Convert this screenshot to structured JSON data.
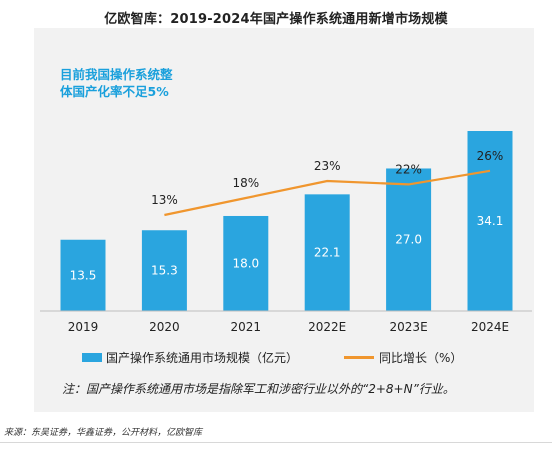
{
  "header": {
    "title": "亿欧智库：2019-2024年国产操作系统通用新增市场规模"
  },
  "callout": {
    "line1": "目前我国操作系统整",
    "line2": "体国产化率不足5%"
  },
  "note": "注：国产操作系统通用市场是指除军工和涉密行业以外的“2+8+N”行业。",
  "source": "来源：东吴证券，华鑫证券，公开材料，亿欧智库",
  "colors": {
    "bar": "#2aa5df",
    "line": "#f0962e",
    "panel": "#f2f2f2",
    "callout": "#1aa0dc"
  },
  "chart_data": {
    "type": "bar",
    "title": "亿欧智库：2019-2024年国产操作系统通用新增市场规模",
    "categories": [
      "2019",
      "2020",
      "2021",
      "2022E",
      "2023E",
      "2024E"
    ],
    "series": [
      {
        "name": "国产操作系统通用市场规模（亿元）",
        "type": "bar",
        "values": [
          13.5,
          15.3,
          18.0,
          22.1,
          27.0,
          34.1
        ],
        "labels": [
          "13.5",
          "15.3",
          "18.0",
          "22.1",
          "27.0",
          "34.1"
        ]
      },
      {
        "name": "同比增长（%）",
        "type": "line",
        "values": [
          null,
          13,
          18,
          23,
          22,
          26
        ],
        "labels": [
          "",
          "13%",
          "18%",
          "23%",
          "22%",
          "26%"
        ]
      }
    ],
    "legend": "bottom",
    "grid": false
  }
}
